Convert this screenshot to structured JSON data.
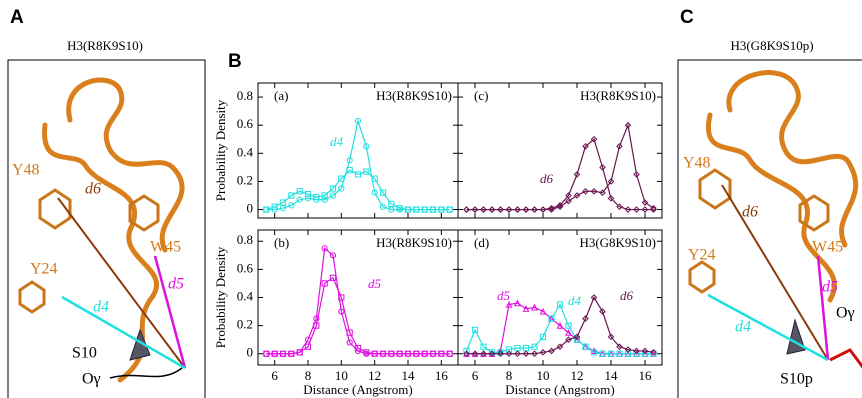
{
  "panels": {
    "A": {
      "letter": "A",
      "title": "H3(R8K9S10)",
      "labels": [
        "Y48",
        "d6",
        "W45",
        "Y24",
        "d5",
        "d4",
        "S10",
        "Oγ"
      ]
    },
    "B": {
      "letter": "B"
    },
    "C": {
      "letter": "C",
      "title": "H3(G8K9S10p)",
      "labels": [
        "Y48",
        "d6",
        "W45",
        "Y24",
        "d5",
        "d4",
        "Oγ",
        "S10p"
      ]
    }
  },
  "chart_data": [
    {
      "type": "line",
      "label": "(a)",
      "title": "H3(R8K9S10)",
      "ylabel": "Probability Density",
      "x": [
        5.5,
        6,
        6.5,
        7,
        7.5,
        8,
        8.5,
        9,
        9.5,
        10,
        10.5,
        11,
        11.5,
        12,
        12.5,
        13,
        13.5,
        14,
        14.5,
        15,
        15.5,
        16,
        16.5
      ],
      "xlim": [
        5,
        17
      ],
      "xticks": [
        6,
        8,
        10,
        12,
        14,
        16
      ],
      "ylim": [
        -0.06,
        0.9
      ],
      "yticks": [
        0,
        0.2,
        0.4,
        0.6,
        0.8
      ],
      "series": [
        {
          "color": "#1fe0e0",
          "marker": "square",
          "values": [
            0,
            0.02,
            0.05,
            0.1,
            0.13,
            0.11,
            0.09,
            0.1,
            0.15,
            0.22,
            0.28,
            0.25,
            0.27,
            0.22,
            0.12,
            0.04,
            0.01,
            0,
            0,
            0,
            0,
            0,
            0
          ]
        },
        {
          "color": "#1fe0e0",
          "marker": "circle",
          "values": [
            0,
            0,
            0.01,
            0.03,
            0.07,
            0.08,
            0.07,
            0.07,
            0.1,
            0.15,
            0.35,
            0.63,
            0.45,
            0.12,
            0.02,
            0,
            0,
            0,
            0,
            0,
            0,
            0,
            0
          ]
        }
      ],
      "annotations": [
        {
          "text": "d4",
          "color": "#1fe0e0"
        }
      ]
    },
    {
      "type": "line",
      "label": "(c)",
      "title": "H3(R8K9S10)",
      "x": [
        5.5,
        6,
        6.5,
        7,
        7.5,
        8,
        8.5,
        9,
        9.5,
        10,
        10.5,
        11,
        11.5,
        12,
        12.5,
        13,
        13.5,
        14,
        14.5,
        15,
        15.5,
        16,
        16.5
      ],
      "xlim": [
        5,
        17
      ],
      "xticks": [
        6,
        8,
        10,
        12,
        14,
        16
      ],
      "ylim": [
        -0.06,
        0.9
      ],
      "yticks": [
        0,
        0.2,
        0.4,
        0.6,
        0.8
      ],
      "series": [
        {
          "color": "#6a1550",
          "marker": "diamond",
          "values": [
            0,
            0,
            0,
            0,
            0,
            0,
            0,
            0,
            0,
            0,
            0.01,
            0.03,
            0.1,
            0.25,
            0.45,
            0.5,
            0.3,
            0.08,
            0.02,
            0,
            0,
            0,
            0
          ]
        },
        {
          "color": "#6a1550",
          "marker": "diamond",
          "values": [
            0,
            0,
            0,
            0,
            0,
            0,
            0,
            0,
            0,
            0,
            0,
            0.02,
            0.06,
            0.1,
            0.13,
            0.13,
            0.12,
            0.2,
            0.45,
            0.6,
            0.25,
            0.05,
            0.01
          ]
        }
      ],
      "annotations": [
        {
          "text": "d6",
          "color": "#6a1550"
        }
      ]
    },
    {
      "type": "line",
      "label": "(b)",
      "title": "H3(R8K9S10)",
      "ylabel": "Probability Density",
      "xlabel": "Distance (Angstrom)",
      "x": [
        5.5,
        6,
        6.5,
        7,
        7.5,
        8,
        8.5,
        9,
        9.5,
        10,
        10.5,
        11,
        11.5,
        12,
        12.5,
        13,
        13.5,
        14,
        14.5,
        15,
        15.5,
        16,
        16.5
      ],
      "xlim": [
        5,
        17
      ],
      "xticks": [
        6,
        8,
        10,
        12,
        14,
        16
      ],
      "ylim": [
        -0.08,
        0.88
      ],
      "yticks": [
        0,
        0.2,
        0.4,
        0.6,
        0.8
      ],
      "series": [
        {
          "color": "#e010e0",
          "marker": "circle",
          "values": [
            0,
            0,
            0,
            0,
            0.01,
            0.1,
            0.25,
            0.75,
            0.7,
            0.3,
            0.08,
            0.02,
            0,
            0,
            0,
            0,
            0,
            0,
            0,
            0,
            0,
            0,
            0
          ]
        },
        {
          "color": "#e010e0",
          "marker": "square",
          "values": [
            0,
            0,
            0,
            0,
            0.01,
            0.05,
            0.2,
            0.5,
            0.54,
            0.4,
            0.15,
            0.04,
            0.01,
            0,
            0,
            0,
            0,
            0,
            0,
            0,
            0,
            0,
            0
          ]
        }
      ],
      "annotations": [
        {
          "text": "d5",
          "color": "#e010e0"
        }
      ]
    },
    {
      "type": "line",
      "label": "(d)",
      "title": "H3(G8K9S10)",
      "xlabel": "Distance (Angstrom)",
      "x": [
        5.5,
        6,
        6.5,
        7,
        7.5,
        8,
        8.5,
        9,
        9.5,
        10,
        10.5,
        11,
        11.5,
        12,
        12.5,
        13,
        13.5,
        14,
        14.5,
        15,
        15.5,
        16,
        16.5
      ],
      "xlim": [
        5,
        17
      ],
      "xticks": [
        6,
        8,
        10,
        12,
        14,
        16
      ],
      "ylim": [
        -0.08,
        0.88
      ],
      "yticks": [
        0,
        0.2,
        0.4,
        0.6,
        0.8
      ],
      "series": [
        {
          "color": "#e010e0",
          "marker": "triangle",
          "values": [
            0,
            0,
            0,
            0,
            0.02,
            0.35,
            0.36,
            0.32,
            0.33,
            0.3,
            0.25,
            0.2,
            0.15,
            0.1,
            0.05,
            0.02,
            0,
            0,
            0,
            0,
            0,
            0,
            0
          ]
        },
        {
          "color": "#1fe0e0",
          "marker": "square",
          "values": [
            0.02,
            0.17,
            0.05,
            0.01,
            0.01,
            0.03,
            0.04,
            0.04,
            0.05,
            0.12,
            0.25,
            0.35,
            0.2,
            0.1,
            0.05,
            0.01,
            0,
            0,
            0,
            0,
            0,
            0,
            0
          ]
        },
        {
          "color": "#6a1550",
          "marker": "diamond",
          "values": [
            0,
            0,
            0,
            0,
            0,
            0,
            0,
            0,
            0,
            0.01,
            0.02,
            0.05,
            0.1,
            0.12,
            0.25,
            0.4,
            0.3,
            0.12,
            0.05,
            0.03,
            0.02,
            0.02,
            0.01
          ]
        }
      ],
      "annotations": [
        {
          "text": "d5",
          "color": "#e010e0"
        },
        {
          "text": "d4",
          "color": "#1fe0e0"
        },
        {
          "text": "d6",
          "color": "#6a1550"
        }
      ]
    }
  ]
}
